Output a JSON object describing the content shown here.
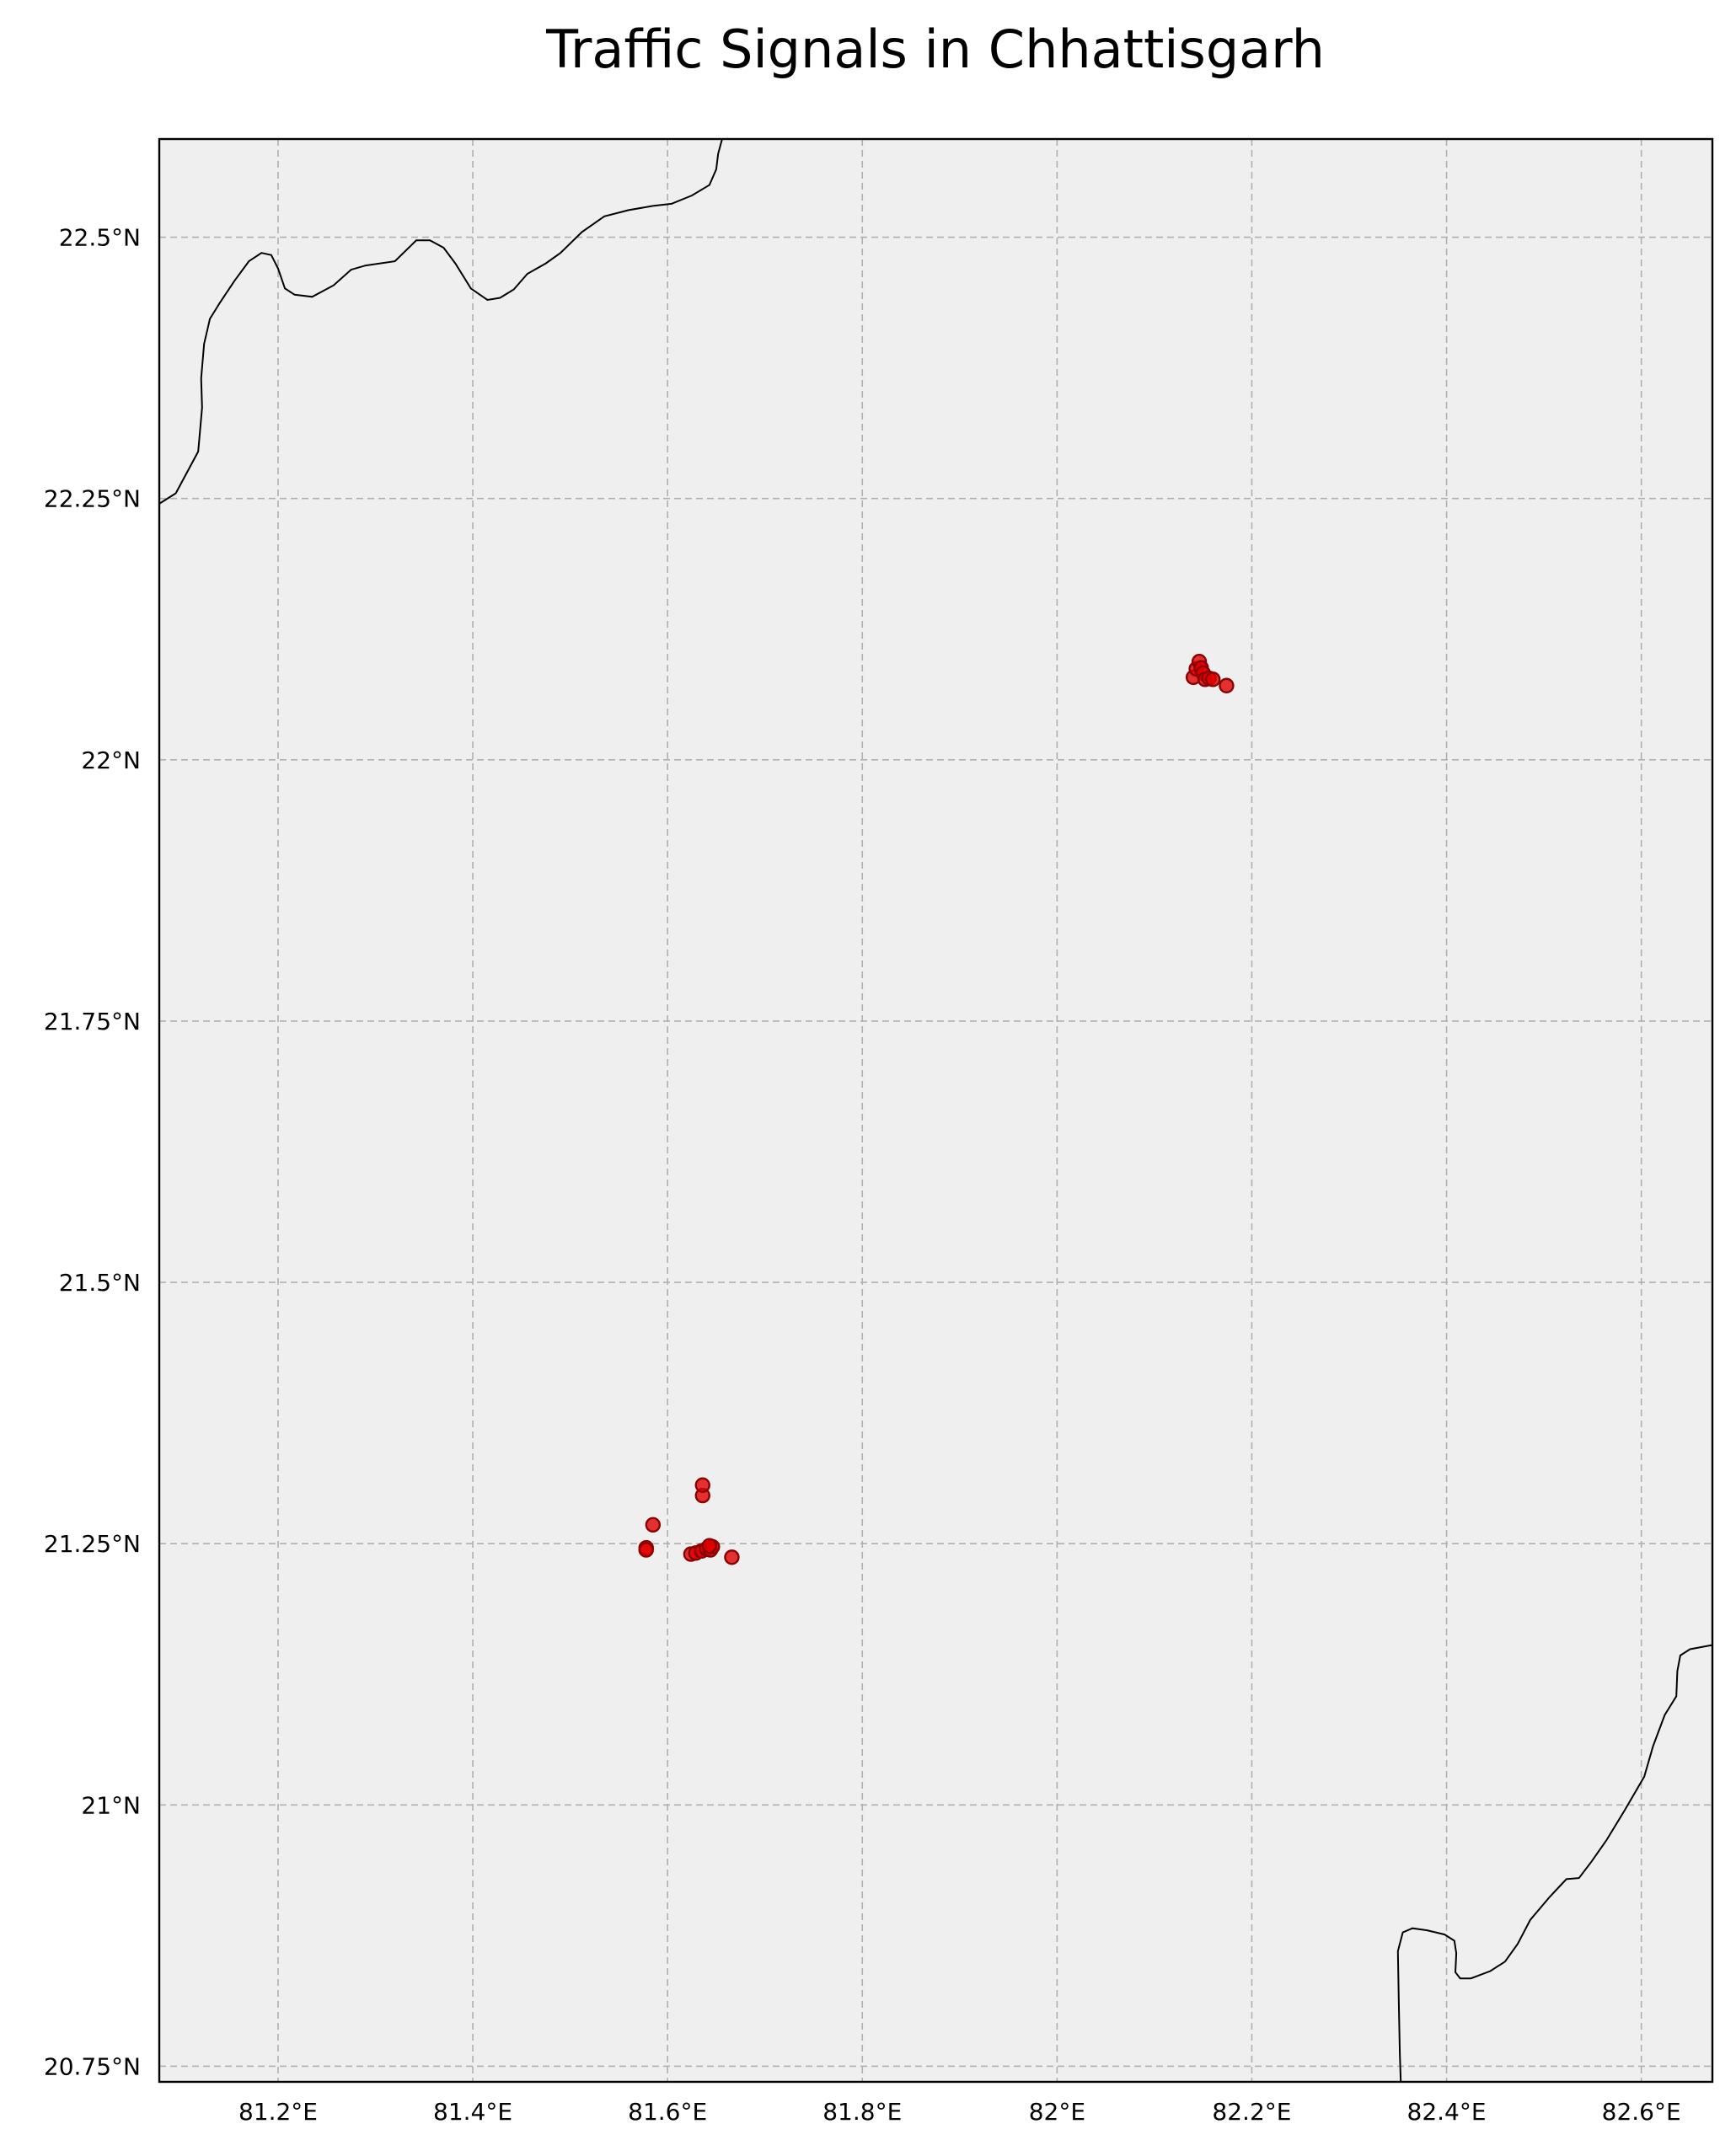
{
  "chart_data": {
    "type": "scatter",
    "title": "Traffic Signals in Chhattisgarh",
    "xlim": [
      81.078,
      82.673
    ],
    "ylim": [
      20.735,
      22.594
    ],
    "grid": true,
    "colors": {
      "marker_fill": "#e00000",
      "marker_edge": "#8b0000",
      "map_background": "#efefef",
      "boundary": "#000000",
      "grid": "#b0b0b0"
    },
    "x_ticks": [
      {
        "value": 81.2,
        "label": "81.2°E"
      },
      {
        "value": 81.4,
        "label": "81.4°E"
      },
      {
        "value": 81.6,
        "label": "81.6°E"
      },
      {
        "value": 81.8,
        "label": "81.8°E"
      },
      {
        "value": 82.0,
        "label": "82°E"
      },
      {
        "value": 82.2,
        "label": "82.2°E"
      },
      {
        "value": 82.4,
        "label": "82.4°E"
      },
      {
        "value": 82.6,
        "label": "82.6°E"
      }
    ],
    "y_ticks": [
      {
        "value": 20.75,
        "label": "20.75°N"
      },
      {
        "value": 21.0,
        "label": "21°N"
      },
      {
        "value": 21.25,
        "label": "21.25°N"
      },
      {
        "value": 21.5,
        "label": "21.5°N"
      },
      {
        "value": 21.75,
        "label": "21.75°N"
      },
      {
        "value": 22.0,
        "label": "22°N"
      },
      {
        "value": 22.25,
        "label": "22.25°N"
      },
      {
        "value": 22.5,
        "label": "22.5°N"
      }
    ],
    "points": [
      {
        "x": 81.578,
        "y": 21.246
      },
      {
        "x": 81.585,
        "y": 21.268
      },
      {
        "x": 81.578,
        "y": 21.244
      },
      {
        "x": 81.624,
        "y": 21.24
      },
      {
        "x": 81.629,
        "y": 21.241
      },
      {
        "x": 81.635,
        "y": 21.243
      },
      {
        "x": 81.64,
        "y": 21.245
      },
      {
        "x": 81.644,
        "y": 21.244
      },
      {
        "x": 81.646,
        "y": 21.247
      },
      {
        "x": 81.643,
        "y": 21.248
      },
      {
        "x": 81.636,
        "y": 21.296
      },
      {
        "x": 81.636,
        "y": 21.306
      },
      {
        "x": 81.666,
        "y": 21.237
      },
      {
        "x": 82.14,
        "y": 22.079
      },
      {
        "x": 82.143,
        "y": 22.087
      },
      {
        "x": 82.146,
        "y": 22.094
      },
      {
        "x": 82.148,
        "y": 22.088
      },
      {
        "x": 82.15,
        "y": 22.083
      },
      {
        "x": 82.152,
        "y": 22.077
      },
      {
        "x": 82.156,
        "y": 22.078
      },
      {
        "x": 82.16,
        "y": 22.077
      },
      {
        "x": 82.174,
        "y": 22.071
      }
    ],
    "boundaries": [
      [
        [
          81.078,
          22.245
        ],
        [
          81.095,
          22.255
        ],
        [
          81.118,
          22.295
        ],
        [
          81.122,
          22.337
        ],
        [
          81.121,
          22.365
        ],
        [
          81.124,
          22.398
        ],
        [
          81.13,
          22.422
        ],
        [
          81.14,
          22.437
        ],
        [
          81.155,
          22.458
        ],
        [
          81.17,
          22.477
        ],
        [
          81.183,
          22.485
        ],
        [
          81.193,
          22.483
        ],
        [
          81.2,
          22.47
        ],
        [
          81.207,
          22.451
        ],
        [
          81.217,
          22.445
        ],
        [
          81.235,
          22.443
        ],
        [
          81.257,
          22.454
        ],
        [
          81.275,
          22.469
        ],
        [
          81.29,
          22.473
        ],
        [
          81.32,
          22.477
        ],
        [
          81.342,
          22.497
        ],
        [
          81.356,
          22.497
        ],
        [
          81.37,
          22.49
        ],
        [
          81.382,
          22.475
        ],
        [
          81.398,
          22.451
        ],
        [
          81.415,
          22.44
        ],
        [
          81.428,
          22.442
        ],
        [
          81.442,
          22.45
        ],
        [
          81.456,
          22.465
        ],
        [
          81.475,
          22.475
        ],
        [
          81.49,
          22.485
        ],
        [
          81.512,
          22.505
        ],
        [
          81.535,
          22.52
        ],
        [
          81.56,
          22.526
        ],
        [
          81.585,
          22.53
        ],
        [
          81.604,
          22.532
        ],
        [
          81.625,
          22.54
        ],
        [
          81.643,
          22.55
        ],
        [
          81.65,
          22.565
        ],
        [
          81.652,
          22.58
        ],
        [
          81.656,
          22.594
        ]
      ],
      [
        [
          82.353,
          20.735
        ],
        [
          82.352,
          20.762
        ],
        [
          82.351,
          20.81
        ],
        [
          82.35,
          20.86
        ],
        [
          82.355,
          20.878
        ],
        [
          82.365,
          20.882
        ],
        [
          82.38,
          20.88
        ],
        [
          82.398,
          20.876
        ],
        [
          82.408,
          20.87
        ],
        [
          82.41,
          20.858
        ],
        [
          82.409,
          20.84
        ],
        [
          82.414,
          20.834
        ],
        [
          82.425,
          20.834
        ],
        [
          82.445,
          20.841
        ],
        [
          82.46,
          20.85
        ],
        [
          82.473,
          20.867
        ],
        [
          82.486,
          20.89
        ],
        [
          82.506,
          20.912
        ],
        [
          82.523,
          20.929
        ],
        [
          82.536,
          20.93
        ],
        [
          82.549,
          20.946
        ],
        [
          82.564,
          20.966
        ],
        [
          82.583,
          20.995
        ],
        [
          82.603,
          21.027
        ],
        [
          82.612,
          21.056
        ],
        [
          82.624,
          21.086
        ],
        [
          82.636,
          21.104
        ],
        [
          82.637,
          21.128
        ],
        [
          82.64,
          21.143
        ],
        [
          82.65,
          21.149
        ],
        [
          82.673,
          21.153
        ]
      ]
    ]
  }
}
